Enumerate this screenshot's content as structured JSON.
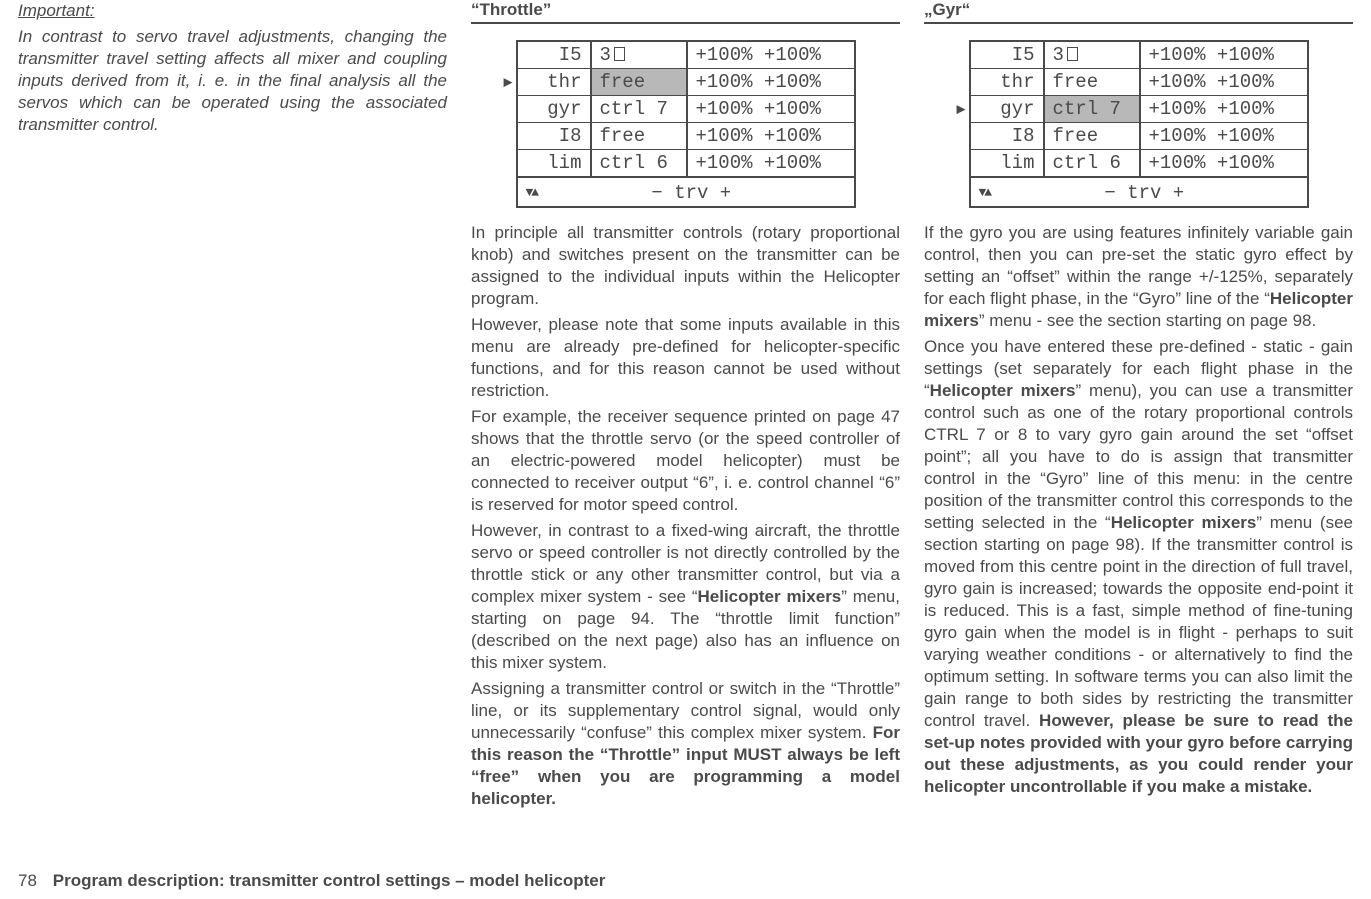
{
  "footer": {
    "page_number": "78",
    "title": "Program description: transmitter control settings – model helicopter"
  },
  "col1": {
    "heading": "Important:",
    "body": "In contrast to servo travel adjustments, changing the transmitter travel setting affects all mixer and coupling inputs derived from it, i. e. in the final analysis all the servos which can be operated using the associated transmitter control."
  },
  "throttle": {
    "title": "“Throttle”",
    "lcd": {
      "rows": [
        {
          "label": "I5",
          "ctrl": "3",
          "ctrl_has_box": true,
          "vals": "+100% +100%",
          "selected": false,
          "head": true
        },
        {
          "label": "thr",
          "ctrl": "free",
          "vals": "+100% +100%",
          "selected": true,
          "pointer": true
        },
        {
          "label": "gyr",
          "ctrl": "ctrl 7",
          "vals": "+100% +100%",
          "selected": false
        },
        {
          "label": "I8",
          "ctrl": "free",
          "vals": "+100% +100%",
          "selected": false
        },
        {
          "label": "lim",
          "ctrl": "ctrl 6",
          "vals": "+100% +100%",
          "selected": false
        }
      ],
      "footer_center": "−  trv  +"
    },
    "paras": [
      "In principle all transmitter controls (rotary proportional knob) and switches present on the transmitter can be assigned to the individual inputs within the Helicopter program.",
      "However, please note that some inputs available in this menu are already pre-defined for helicopter-specific functions, and for this reason cannot be used without restriction.",
      "For example, the receiver sequence printed on page 47 shows that the throttle servo (or the speed controller of an electric-powered model helicopter) must be connected to receiver output “6”, i. e. control channel “6” is reserved for motor speed control."
    ],
    "para_rich_pre": "However, in contrast to a fixed-wing aircraft, the throttle servo or speed controller is not directly controlled by the throttle stick or any other transmitter control, but via a complex mixer system - see “",
    "para_rich_bold": "Helicopter mixers",
    "para_rich_post": "” menu, starting on page 94. The “throttle limit function” (described on the next page) also has an influence on this mixer system.",
    "para_last_plain": "Assigning a transmitter control or switch in the “Throttle” line, or its supplementary control signal, would only unnecessarily “confuse” this complex mixer system.",
    "para_last_bold": "For this reason the “Throttle” input MUST always be left “free” when you are programming a model helicopter."
  },
  "gyr": {
    "title": "„Gyr“",
    "lcd": {
      "rows": [
        {
          "label": "I5",
          "ctrl": "3",
          "ctrl_has_box": true,
          "vals": "+100% +100%",
          "selected": false,
          "head": true
        },
        {
          "label": "thr",
          "ctrl": "free",
          "vals": "+100% +100%",
          "selected": false
        },
        {
          "label": "gyr",
          "ctrl": "ctrl 7",
          "vals": "+100% +100%",
          "selected": true,
          "pointer": true
        },
        {
          "label": "I8",
          "ctrl": "free",
          "vals": "+100% +100%",
          "selected": false
        },
        {
          "label": "lim",
          "ctrl": "ctrl 6",
          "vals": "+100% +100%",
          "selected": false
        }
      ],
      "footer_center": "−  trv  +"
    },
    "p1_a": "If the gyro you are using features infinitely variable gain control, then you can pre-set the static gyro effect by setting an “offset” within the range +/-125%, separately for each flight phase, in the “Gyro” line of the “",
    "p1_b": "Helicopter mixers",
    "p1_c": "” menu - see the section starting on page 98.",
    "p2_a": "Once you have entered these pre-defined - static - gain settings (set separately for each flight phase in the “",
    "p2_b": "Helicopter mixers",
    "p2_c": "” menu), you can use a transmitter control such as one of the rotary proportional controls CTRL 7 or 8 to vary gyro gain around the set “offset point”; all you have to do is assign that transmitter control in the “Gyro” line of this menu: in the centre position of the transmitter control this corresponds to the setting selected in the “",
    "p2_d": "Helicopter mixers",
    "p2_e": "” menu (see section starting on page 98). If the transmitter control is moved from this centre point in the direction of full travel, gyro gain is increased; towards the opposite end-point it is reduced. This is a fast, simple method of fine-tuning gyro gain when the model is in flight - perhaps to suit varying weather conditions - or alternatively to find the optimum setting. In software terms you can also limit the gain range to both sides by restricting the transmitter control travel. ",
    "p2_f": "However, please be sure to read the set-up notes provided with your gyro before carrying out these adjustments, as you could render your helicopter uncontrollable if you make a mistake."
  }
}
